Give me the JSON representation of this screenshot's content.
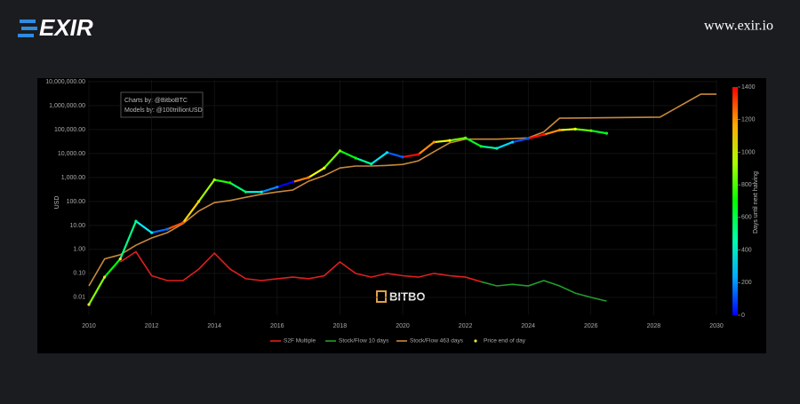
{
  "header": {
    "brand": "EXIR",
    "website": "www.exir.io"
  },
  "chart_data": {
    "type": "line",
    "y_scale": "log",
    "ylabel": "USD",
    "annotations": [
      "Charts by: @BitboBTC",
      "Models by: @100trillionUSD"
    ],
    "watermark": "BITBO",
    "xlim": [
      2010,
      2030
    ],
    "xticks": [
      2010,
      2012,
      2014,
      2016,
      2018,
      2020,
      2022,
      2024,
      2026,
      2028,
      2030
    ],
    "ylim": [
      0.0018,
      11800000
    ],
    "yticks": [
      0.01,
      {
        "value": 0.1,
        "label": "0.10"
      },
      {
        "value": 1,
        "label": "1.00"
      },
      {
        "value": 10,
        "label": "10.00"
      },
      {
        "value": 100,
        "label": "100.00"
      },
      {
        "value": 1000,
        "label": "1,000.00"
      },
      {
        "value": 10000,
        "label": "10,000.00"
      },
      {
        "value": 100000,
        "label": "100,000.00"
      },
      {
        "value": 1000000,
        "label": "1,000,000.00"
      },
      {
        "value": 10000000,
        "label": "10,000,000.00"
      }
    ],
    "colorbar": {
      "label": "Days until next halving",
      "lim": [
        0,
        1400
      ],
      "ticks": [
        0,
        200,
        400,
        600,
        800,
        1000,
        1200,
        1400
      ]
    },
    "series": [
      {
        "name": "S2F Multiple",
        "color": "#e01e1e",
        "x": [
          2011.0,
          2011.5,
          2012.0,
          2012.5,
          2013.0,
          2013.5,
          2014.0,
          2014.5,
          2015.0,
          2015.5,
          2016.0,
          2016.5,
          2017.0,
          2017.5,
          2018.0,
          2018.5,
          2019.0,
          2019.5,
          2020.0,
          2020.5,
          2021.0,
          2021.5,
          2022.0,
          2022.5
        ],
        "values": [
          0.3,
          0.8,
          0.08,
          0.05,
          0.05,
          0.15,
          0.7,
          0.15,
          0.06,
          0.05,
          0.06,
          0.07,
          0.06,
          0.08,
          0.3,
          0.1,
          0.07,
          0.1,
          0.08,
          0.07,
          0.1,
          0.08,
          0.07,
          0.045
        ]
      },
      {
        "name": "Stock/Flow 10 days",
        "color": "#1f9e2c",
        "x": [
          2022.5,
          2023.0,
          2023.5,
          2024.0,
          2024.5,
          2025.0,
          2025.5,
          2026.0,
          2026.5
        ],
        "values": [
          0.045,
          0.03,
          0.035,
          0.03,
          0.05,
          0.03,
          0.015,
          0.01,
          0.007
        ]
      },
      {
        "name": "Stock/Flow 463 days",
        "color": "#c8893a",
        "x": [
          2010.0,
          2010.5,
          2011.0,
          2011.5,
          2012.0,
          2012.5,
          2013.0,
          2013.5,
          2014.0,
          2014.5,
          2015.0,
          2015.5,
          2016.0,
          2016.5,
          2017.0,
          2017.5,
          2018.0,
          2018.5,
          2019.0,
          2019.5,
          2020.0,
          2020.5,
          2021.0,
          2021.5,
          2022.0,
          2022.5,
          2023.0,
          2023.5,
          2024.0,
          2024.5,
          2025.0,
          2028.2,
          2029.5,
          2030.0
        ],
        "values": [
          0.03,
          0.4,
          0.6,
          1.5,
          3,
          5,
          12,
          40,
          90,
          110,
          150,
          200,
          250,
          300,
          700,
          1200,
          2500,
          3000,
          3000,
          3200,
          3500,
          5000,
          12000,
          28000,
          40000,
          40000,
          40000,
          42000,
          45000,
          80000,
          300000,
          330000,
          3000000,
          3000000
        ]
      },
      {
        "name": "Price end of day",
        "color": "#e8e23a",
        "x": [
          2010.0,
          2010.5,
          2011.0,
          2011.5,
          2012.0,
          2012.5,
          2013.0,
          2013.5,
          2014.0,
          2014.5,
          2015.0,
          2015.5,
          2016.0,
          2016.5,
          2017.0,
          2017.5,
          2018.0,
          2018.5,
          2019.0,
          2019.5,
          2020.0,
          2020.5,
          2021.0,
          2021.5,
          2022.0,
          2022.5,
          2023.0,
          2023.5,
          2024.0,
          2024.5,
          2025.0,
          2025.5,
          2026.0,
          2026.5
        ],
        "values": [
          0.005,
          0.07,
          0.4,
          15,
          5,
          7,
          13,
          100,
          800,
          600,
          250,
          250,
          400,
          650,
          1000,
          2500,
          13000,
          6500,
          3700,
          11000,
          7200,
          9200,
          30000,
          35000,
          45000,
          20000,
          16500,
          30000,
          42000,
          62000,
          95000,
          105000,
          90000,
          70000
        ],
        "color_values": [
          1062,
          880,
          697,
          515,
          332,
          150,
          1286,
          1103,
          921,
          738,
          555,
          373,
          190,
          7,
          1226,
          1044,
          862,
          679,
          496,
          314,
          131,
          1387,
          1205,
          1022,
          840,
          657,
          475,
          292,
          110,
          1387,
          1205,
          1022,
          840,
          657
        ]
      }
    ]
  }
}
